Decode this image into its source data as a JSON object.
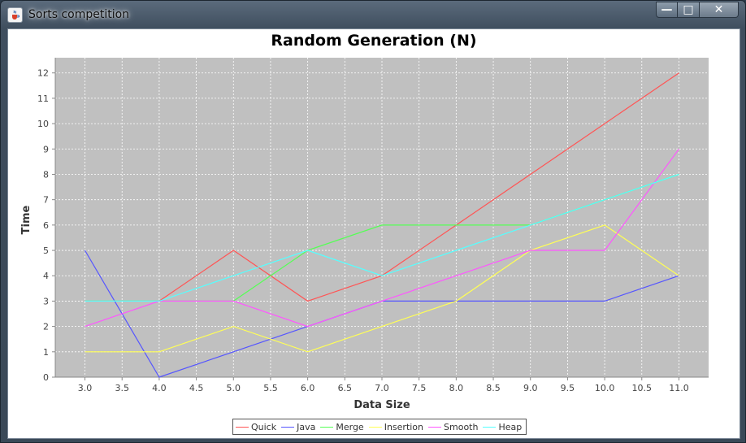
{
  "window": {
    "title": "Sorts competition",
    "icon": "java-cup-icon",
    "buttons": {
      "minimize": "—",
      "maximize": "□",
      "close": "✕"
    }
  },
  "chart_data": {
    "type": "line",
    "title": "Random Generation (N)",
    "xlabel": "Data Size",
    "ylabel": "Time",
    "xlim": [
      2.6,
      11.4
    ],
    "ylim": [
      0,
      12.6
    ],
    "x_ticks": [
      "3.0",
      "3.5",
      "4.0",
      "4.5",
      "5.0",
      "5.5",
      "6.0",
      "6.5",
      "7.0",
      "7.5",
      "8.0",
      "8.5",
      "9.0",
      "9.5",
      "10.0",
      "10.5",
      "11.0"
    ],
    "y_ticks": [
      "0",
      "1",
      "2",
      "3",
      "4",
      "5",
      "6",
      "7",
      "8",
      "9",
      "10",
      "11",
      "12"
    ],
    "grid": true,
    "legend_position": "bottom",
    "background": "#c0c0c0",
    "x": [
      3,
      4,
      5,
      6,
      7,
      8,
      9,
      10,
      11
    ],
    "series": [
      {
        "name": "Quick",
        "color": "#ff5555",
        "values": [
          3,
          3,
          5,
          3,
          4,
          6,
          8,
          10,
          12
        ]
      },
      {
        "name": "Java",
        "color": "#5555ff",
        "values": [
          5,
          0,
          1,
          2,
          3,
          3,
          3,
          3,
          4
        ]
      },
      {
        "name": "Merge",
        "color": "#55ff55",
        "values": [
          3,
          3,
          3,
          5,
          6,
          6,
          6,
          7,
          8
        ]
      },
      {
        "name": "Insertion",
        "color": "#ffff55",
        "values": [
          1,
          1,
          2,
          1,
          2,
          3,
          5,
          6,
          4
        ]
      },
      {
        "name": "Smooth",
        "color": "#ff55ff",
        "values": [
          2,
          3,
          3,
          2,
          3,
          4,
          5,
          5,
          9
        ]
      },
      {
        "name": "Heap",
        "color": "#55ffff",
        "values": [
          3,
          3,
          4,
          5,
          4,
          5,
          6,
          7,
          8
        ]
      }
    ]
  }
}
